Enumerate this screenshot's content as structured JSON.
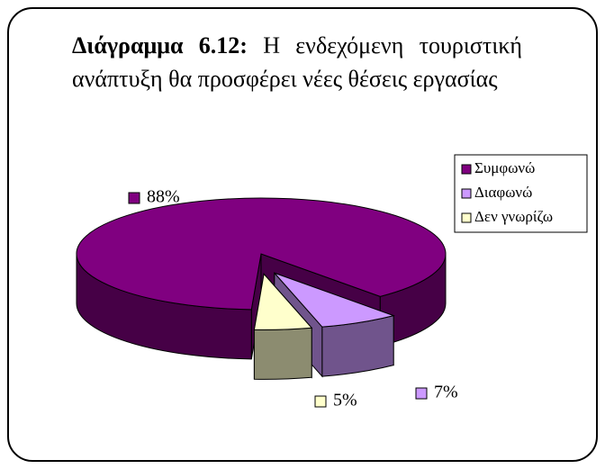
{
  "chart_data": {
    "type": "pie3d",
    "title_label": "Διάγραμμα 6.12:",
    "title": "Η ενδεχόμενη τουριστική ανάπτυξη θα προσφέρει νέες θέσεις εργασίας",
    "categories": [
      "Συμφωνώ",
      "Διαφωνώ",
      "Δεν γνωρίζω"
    ],
    "values": [
      88,
      7,
      5
    ],
    "value_labels": [
      "88%",
      "7%",
      "5%"
    ],
    "colors": [
      "#800080",
      "#cc99ff",
      "#ffffcc"
    ],
    "legend": "top-right"
  }
}
